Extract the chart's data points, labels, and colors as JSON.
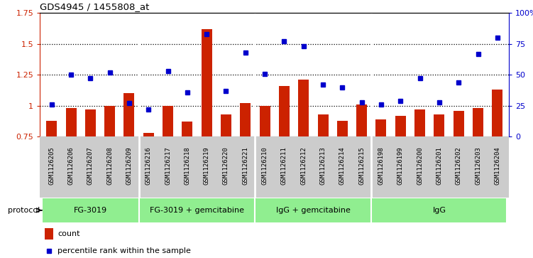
{
  "title": "GDS4945 / 1455808_at",
  "samples": [
    "GSM1126205",
    "GSM1126206",
    "GSM1126207",
    "GSM1126208",
    "GSM1126209",
    "GSM1126216",
    "GSM1126217",
    "GSM1126218",
    "GSM1126219",
    "GSM1126220",
    "GSM1126221",
    "GSM1126210",
    "GSM1126211",
    "GSM1126212",
    "GSM1126213",
    "GSM1126214",
    "GSM1126215",
    "GSM1126198",
    "GSM1126199",
    "GSM1126200",
    "GSM1126201",
    "GSM1126202",
    "GSM1126203",
    "GSM1126204"
  ],
  "counts": [
    0.88,
    0.98,
    0.97,
    1.0,
    1.1,
    0.78,
    1.0,
    0.87,
    1.62,
    0.93,
    1.02,
    1.0,
    1.16,
    1.21,
    0.93,
    0.88,
    1.01,
    0.89,
    0.92,
    0.97,
    0.93,
    0.96,
    0.98,
    1.13
  ],
  "percentiles": [
    26,
    50,
    47,
    52,
    27,
    22,
    53,
    36,
    83,
    37,
    68,
    51,
    77,
    73,
    42,
    40,
    28,
    26,
    29,
    47,
    28,
    44,
    67,
    80
  ],
  "groups": [
    {
      "label": "FG-3019",
      "start": 0,
      "end": 5
    },
    {
      "label": "FG-3019 + gemcitabine",
      "start": 5,
      "end": 11
    },
    {
      "label": "IgG + gemcitabine",
      "start": 11,
      "end": 17
    },
    {
      "label": "IgG",
      "start": 17,
      "end": 24
    }
  ],
  "group_color": "#90EE90",
  "bar_color": "#CC2200",
  "dot_color": "#0000CC",
  "ylim_left": [
    0.75,
    1.75
  ],
  "yticks_left": [
    0.75,
    1.0,
    1.25,
    1.5,
    1.75
  ],
  "ytick_labels_left": [
    "0.75",
    "1",
    "1.25",
    "1.5",
    "1.75"
  ],
  "ylim_right": [
    0,
    100
  ],
  "yticks_right": [
    0,
    25,
    50,
    75,
    100
  ],
  "ytick_labels_right": [
    "0",
    "25",
    "50",
    "75",
    "100%"
  ],
  "hlines": [
    1.0,
    1.25,
    1.5
  ],
  "group_separators": [
    4.5,
    10.5,
    16.5
  ],
  "xtick_bg_color": "#cccccc",
  "bar_bottom": 0.75
}
